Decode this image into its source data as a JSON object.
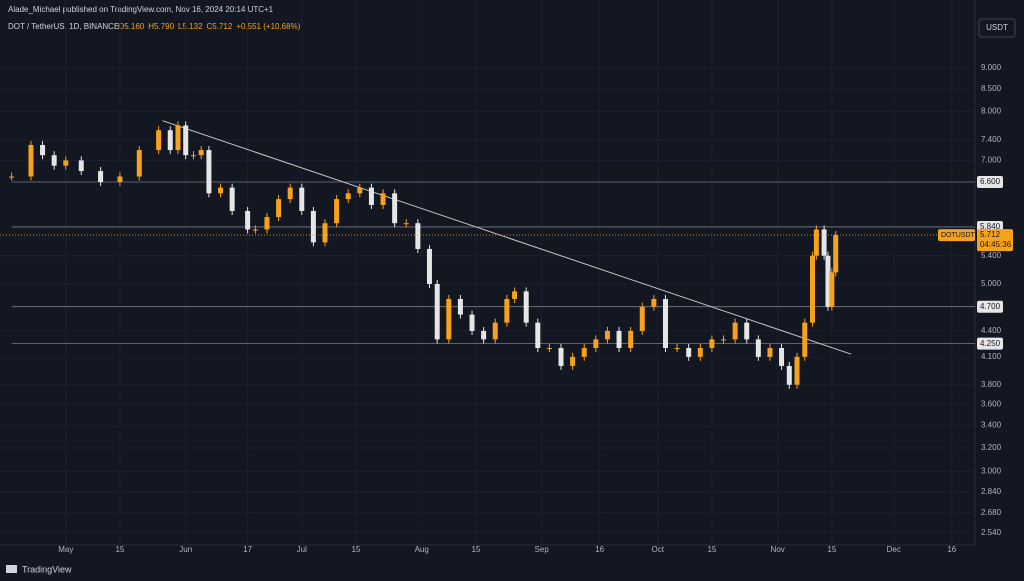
{
  "header": {
    "publisher": "Alade_Michael published on TradingView.com, Nov 16, 2024 20:14 UTC+1",
    "symbol": "DOT / TetherUS, 1D, BINANCE",
    "ohlc": [
      "O5.160",
      "H5.790",
      "L5.132",
      "C5.712",
      "+0.551 (+10.68%)"
    ],
    "currency": "USDT",
    "footer": "TradingView"
  },
  "chart_data": {
    "type": "candlestick",
    "log": true,
    "grid": true,
    "up_color": "#f7a21b",
    "down_color": "#e6e6e6",
    "x": [
      -14,
      -9,
      -6,
      -3,
      0,
      4,
      9,
      14,
      19,
      24,
      27,
      29,
      31,
      33,
      35,
      37,
      40,
      43,
      47,
      49,
      52,
      55,
      58,
      61,
      64,
      67,
      70,
      73,
      76,
      79,
      82,
      85,
      88,
      91,
      94,
      96,
      99,
      102,
      105,
      108,
      111,
      114,
      116,
      119,
      122,
      125,
      128,
      131,
      134,
      137,
      140,
      143,
      146,
      149,
      152,
      155,
      158,
      161,
      164,
      167,
      170,
      173,
      176,
      179,
      182,
      185,
      187,
      189,
      191,
      193,
      194,
      196,
      197,
      198,
      199
    ],
    "values": [
      6.7,
      7.3,
      7.1,
      6.9,
      7.0,
      6.8,
      6.6,
      6.7,
      7.2,
      7.6,
      7.2,
      7.7,
      7.1,
      7.1,
      7.2,
      6.4,
      6.5,
      6.1,
      5.8,
      5.8,
      6.0,
      6.3,
      6.5,
      6.1,
      5.6,
      5.9,
      6.3,
      6.4,
      6.5,
      6.2,
      6.4,
      5.9,
      5.9,
      5.5,
      5.0,
      4.3,
      4.8,
      4.6,
      4.4,
      4.3,
      4.5,
      4.8,
      4.9,
      4.5,
      4.2,
      4.2,
      4.0,
      4.1,
      4.2,
      4.3,
      4.4,
      4.2,
      4.4,
      4.7,
      4.8,
      4.2,
      4.2,
      4.1,
      4.2,
      4.3,
      4.3,
      4.5,
      4.3,
      4.1,
      4.2,
      4.0,
      3.8,
      4.1,
      4.5,
      5.4,
      5.8,
      5.4,
      4.7,
      5.16,
      5.712
    ],
    "xlim": [
      -17,
      235
    ],
    "xticks": [
      {
        "value": 0,
        "label": "May"
      },
      {
        "value": 14,
        "label": "15"
      },
      {
        "value": 31,
        "label": "Jun"
      },
      {
        "value": 47,
        "label": "17"
      },
      {
        "value": 61,
        "label": "Jul"
      },
      {
        "value": 75,
        "label": "15"
      },
      {
        "value": 92,
        "label": "Aug"
      },
      {
        "value": 106,
        "label": "15"
      },
      {
        "value": 123,
        "label": "Sep"
      },
      {
        "value": 138,
        "label": "16"
      },
      {
        "value": 153,
        "label": "Oct"
      },
      {
        "value": 167,
        "label": "15"
      },
      {
        "value": 184,
        "label": "Nov"
      },
      {
        "value": 198,
        "label": "15"
      },
      {
        "value": 214,
        "label": "Dec"
      },
      {
        "value": 229,
        "label": "16"
      }
    ],
    "ylim": [
      2.49,
      10.26
    ],
    "yticks": [
      {
        "value": 9,
        "label": "9.000"
      },
      {
        "value": 8.5,
        "label": "8.500"
      },
      {
        "value": 8,
        "label": "8.000"
      },
      {
        "value": 7.4,
        "label": "7.400"
      },
      {
        "value": 7,
        "label": "7.000"
      },
      {
        "value": 5.4,
        "label": "5.400"
      },
      {
        "value": 5,
        "label": "5.000"
      },
      {
        "value": 4.4,
        "label": "4.400"
      },
      {
        "value": 4.1,
        "label": "4.100"
      },
      {
        "value": 3.8,
        "label": "3.800"
      },
      {
        "value": 3.6,
        "label": "3.600"
      },
      {
        "value": 3.4,
        "label": "3.400"
      },
      {
        "value": 3.2,
        "label": "3.200"
      },
      {
        "value": 3,
        "label": "3.000"
      },
      {
        "value": 2.84,
        "label": "2.840"
      },
      {
        "value": 2.68,
        "label": "2.680"
      },
      {
        "value": 2.54,
        "label": "2.540"
      }
    ],
    "levels": [
      {
        "value": 6.6,
        "label": "6.600"
      },
      {
        "value": 5.84,
        "label": "5.840"
      },
      {
        "value": 4.7,
        "label": "4.700"
      },
      {
        "value": 4.25,
        "label": "4.250"
      }
    ],
    "trendline": {
      "x": [
        25,
        203
      ],
      "values": [
        7.8,
        4.13
      ]
    },
    "last_price": {
      "symbol": "DOTUSDT",
      "countdown": "04:45:36"
    }
  }
}
